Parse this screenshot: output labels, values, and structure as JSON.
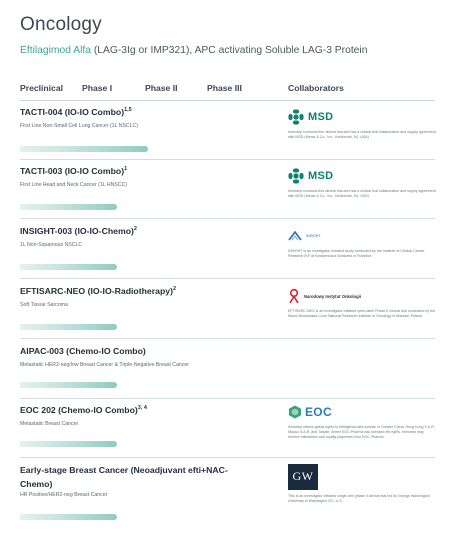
{
  "page": {
    "title": "Oncology",
    "subtitle_accent": "Eftilagimod Alfa",
    "subtitle_rest": " (LAG-3Ig or IMP321), APC activating Soluble LAG-3 Protein"
  },
  "columns": [
    "Preclinical",
    "Phase I",
    "Phase II",
    "Phase III",
    "Collaborators"
  ],
  "colors": {
    "accent": "#3fa597",
    "bar_light": "#e4f1ee",
    "bar_dark": "#8fcbbf",
    "msd_green": "#0e7f72",
    "eoc_blue": "#2e7cb6"
  },
  "trials": [
    {
      "name": "TACTI-004 (IO-IO Combo)",
      "sup": "1,5",
      "indication": "First Line Non-Small Cell Lung Cancer (1L NSCLC)",
      "progress": 0.55,
      "collaborator": {
        "logo": "MSD",
        "icon": "msd-logo-icon",
        "note": "Immutep conducts this clinical trial and has a clinical trial collaboration and supply agreement with MSD (Merck & Co., Inc., Kenilworth, NJ, USA)"
      }
    },
    {
      "name": "TACTI-003 (IO-IO Combo)",
      "sup": "1",
      "indication": "First Line Head and Neck Cancer (1L HNSCC)",
      "progress": 0.42,
      "collaborator": {
        "logo": "MSD",
        "icon": "msd-logo-icon",
        "note": "Immutep conducts this clinical trial and has a clinical trial collaboration and supply agreement with MSD (Merck & Co., Inc., Kenilworth, NJ, USA)"
      }
    },
    {
      "name": "INSIGHT-003 (IO-IO-Chemo)",
      "sup": "2",
      "indication": "1L Non-Squamous NSCLC",
      "progress": 0.42,
      "collaborator": {
        "logo": "INSIGHT",
        "icon": "ikf-logo-icon",
        "note": "INSIGHT is an investigator initiated study conducted by the Institute of Clinical Cancer Research IKF at Krankenhaus Nordwest in Frankfurt."
      }
    },
    {
      "name": "EFTISARC-NEO (IO-IO-Radiotherapy)",
      "sup": "2",
      "indication": "Soft Tissue Sarcoma",
      "progress": 0.42,
      "collaborator": {
        "logo": "Narodowy Instytut Onkologii",
        "icon": "nio-logo-icon",
        "note": "EFTISARC-NEO is an investigator-initiated open-label Phase II clinical trial conducted by the Maria Sklodowska-Curie National Research Institute of Oncology in Warsaw, Poland."
      }
    },
    {
      "name": "AIPAC-003 (Chemo-IO Combo)",
      "sup": "",
      "indication": "Metastatic HER2-neg/low Breast Cancer & Triple-Negative Breast Cancer",
      "progress": 0.42,
      "collaborator": null
    },
    {
      "name": "EOC 202 (Chemo-IO Combo)",
      "sup": "3, 4",
      "indication": "Metastatic Breast Cancer",
      "progress": 0.42,
      "collaborator": {
        "logo": "EOC",
        "icon": "eoc-logo-icon",
        "note": "Immutep retains global rights to eftilagimod alfa outside of Greater China. Hong Kong S.A.R. Macau S.A.R. and Taiwan, where EOC Pharma has licensed efti rights. Immutep may receive milestones and royalty payments from EOC Pharma."
      }
    },
    {
      "name": "Early-stage Breast Cancer (Neoadjuvant efti+NAC-Chemo)",
      "sup": "",
      "indication": "HR Positive/HER2-neg Breast Cancer",
      "progress": 0.42,
      "collaborator": {
        "logo": "GW",
        "icon": "gw-logo-icon",
        "note": "This is an investigator initiated single-arm phase II clinical trial led by George Washington University in Washington DC, U.S."
      }
    }
  ]
}
